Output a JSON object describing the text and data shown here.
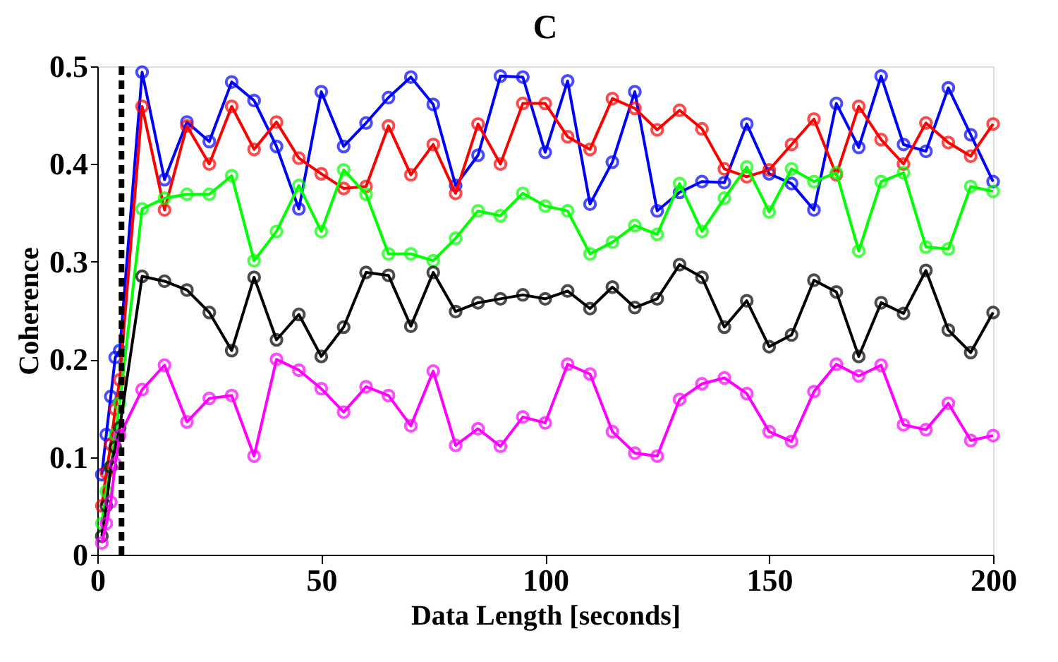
{
  "chart_data": {
    "type": "line",
    "title": "C",
    "xlabel": "Data Length [seconds]",
    "ylabel": "Coherence",
    "x": [
      1,
      2,
      3,
      4,
      5,
      10,
      15,
      20,
      25,
      30,
      35,
      40,
      45,
      50,
      55,
      60,
      65,
      70,
      75,
      80,
      85,
      90,
      95,
      100,
      105,
      110,
      115,
      120,
      125,
      130,
      135,
      140,
      145,
      150,
      155,
      160,
      165,
      170,
      175,
      180,
      185,
      190,
      195,
      200
    ],
    "series": [
      {
        "color": "#0000ff",
        "values": [
          0.082,
          0.123,
          0.162,
          0.202,
          0.209,
          0.494,
          0.384,
          0.443,
          0.423,
          0.484,
          0.465,
          0.418,
          0.354,
          0.474,
          0.418,
          0.442,
          0.468,
          0.489,
          0.461,
          0.378,
          0.409,
          0.49,
          0.489,
          0.412,
          0.485,
          0.359,
          0.402,
          0.474,
          0.352,
          0.371,
          0.382,
          0.381,
          0.441,
          0.39,
          0.38,
          0.353,
          0.462,
          0.417,
          0.49,
          0.42,
          0.413,
          0.478,
          0.43,
          0.382
        ]
      },
      {
        "color": "#ff0000",
        "values": [
          0.05,
          0.084,
          0.113,
          0.149,
          0.179,
          0.459,
          0.353,
          0.439,
          0.4,
          0.459,
          0.415,
          0.443,
          0.406,
          0.39,
          0.375,
          0.377,
          0.439,
          0.389,
          0.42,
          0.37,
          0.441,
          0.4,
          0.462,
          0.462,
          0.428,
          0.415,
          0.467,
          0.457,
          0.435,
          0.455,
          0.436,
          0.395,
          0.387,
          0.394,
          0.42,
          0.446,
          0.389,
          0.459,
          0.425,
          0.4,
          0.442,
          0.422,
          0.408,
          0.441
        ]
      },
      {
        "color": "#00ff00",
        "values": [
          0.032,
          0.065,
          0.09,
          0.123,
          0.155,
          0.354,
          0.365,
          0.369,
          0.369,
          0.388,
          0.301,
          0.331,
          0.378,
          0.331,
          0.394,
          0.369,
          0.308,
          0.308,
          0.301,
          0.324,
          0.352,
          0.347,
          0.37,
          0.357,
          0.352,
          0.308,
          0.32,
          0.337,
          0.328,
          0.38,
          0.331,
          0.365,
          0.397,
          0.351,
          0.395,
          0.382,
          0.391,
          0.311,
          0.382,
          0.391,
          0.315,
          0.313,
          0.377,
          0.372
        ]
      },
      {
        "color": "#000000",
        "values": [
          0.019,
          0.05,
          0.09,
          0.11,
          0.13,
          0.285,
          0.28,
          0.271,
          0.248,
          0.209,
          0.284,
          0.22,
          0.246,
          0.203,
          0.233,
          0.289,
          0.286,
          0.234,
          0.289,
          0.249,
          0.258,
          0.262,
          0.266,
          0.262,
          0.27,
          0.252,
          0.274,
          0.253,
          0.262,
          0.297,
          0.284,
          0.233,
          0.26,
          0.213,
          0.225,
          0.281,
          0.269,
          0.203,
          0.258,
          0.247,
          0.291,
          0.23,
          0.207,
          0.248
        ]
      },
      {
        "color": "#ff00ff",
        "values": [
          0.012,
          0.032,
          0.054,
          0.093,
          0.122,
          0.169,
          0.194,
          0.136,
          0.16,
          0.163,
          0.101,
          0.2,
          0.189,
          0.17,
          0.146,
          0.172,
          0.163,
          0.132,
          0.188,
          0.112,
          0.129,
          0.111,
          0.141,
          0.135,
          0.195,
          0.185,
          0.126,
          0.104,
          0.101,
          0.159,
          0.175,
          0.181,
          0.165,
          0.126,
          0.116,
          0.167,
          0.195,
          0.183,
          0.194,
          0.133,
          0.128,
          0.155,
          0.117,
          0.122
        ]
      }
    ],
    "xlim": [
      0,
      200
    ],
    "xticks": [
      0,
      50,
      100,
      150,
      200
    ],
    "ylim": [
      0,
      0.5
    ],
    "yticks": [
      0,
      0.1,
      0.2,
      0.3,
      0.4,
      0.5
    ],
    "ref_lines": [
      {
        "axis": "x",
        "value": 5.4,
        "color": "#000000",
        "line_style": "dashed"
      }
    ],
    "marker": "circle",
    "line_style": "solid",
    "grid": false
  }
}
